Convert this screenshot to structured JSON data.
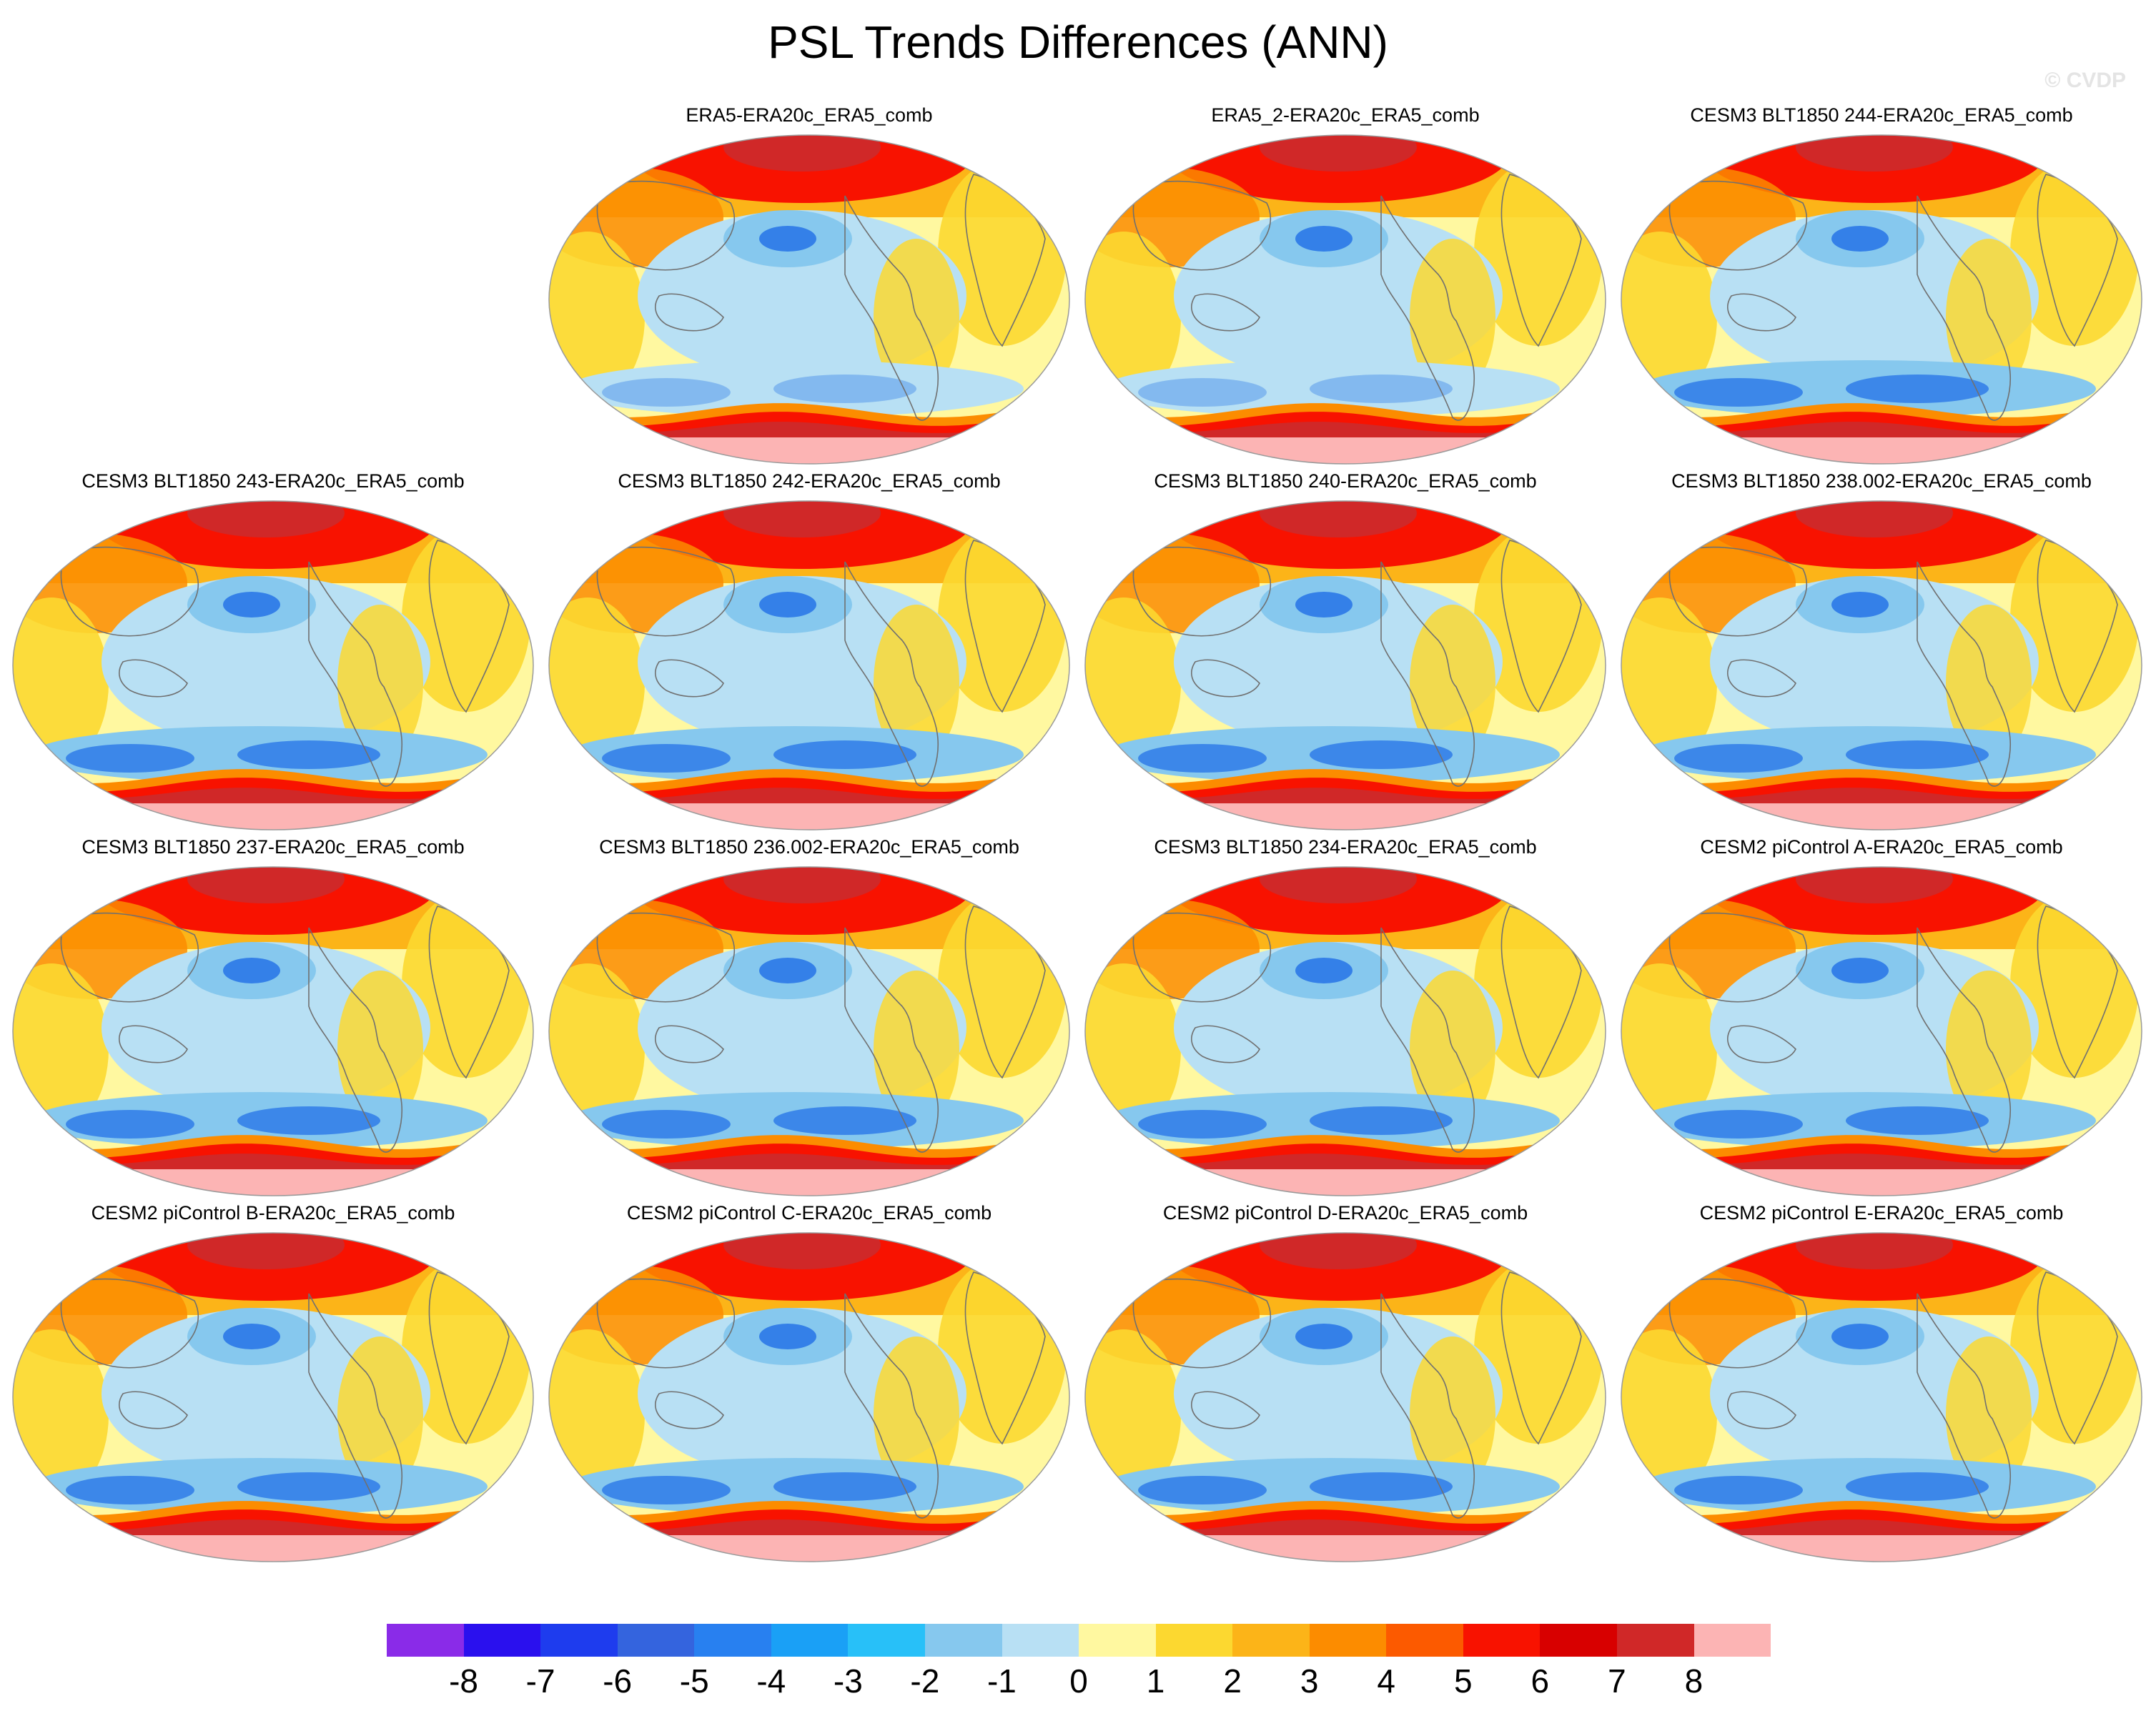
{
  "title": "PSL Trends Differences (ANN)",
  "watermark": "© CVDP",
  "panels": [
    {
      "label": "ERA5-ERA20c_ERA5_comb",
      "row": 0,
      "col": 1,
      "variant": "obs1"
    },
    {
      "label": "ERA5_2-ERA20c_ERA5_comb",
      "row": 0,
      "col": 2,
      "variant": "obs2"
    },
    {
      "label": "CESM3 BLT1850 244-ERA20c_ERA5_comb",
      "row": 0,
      "col": 3,
      "variant": "model"
    },
    {
      "label": "CESM3 BLT1850 243-ERA20c_ERA5_comb",
      "row": 1,
      "col": 0,
      "variant": "model"
    },
    {
      "label": "CESM3 BLT1850 242-ERA20c_ERA5_comb",
      "row": 1,
      "col": 1,
      "variant": "model"
    },
    {
      "label": "CESM3 BLT1850 240-ERA20c_ERA5_comb",
      "row": 1,
      "col": 2,
      "variant": "model"
    },
    {
      "label": "CESM3 BLT1850 238.002-ERA20c_ERA5_comb",
      "row": 1,
      "col": 3,
      "variant": "model"
    },
    {
      "label": "CESM3 BLT1850 237-ERA20c_ERA5_comb",
      "row": 2,
      "col": 0,
      "variant": "model"
    },
    {
      "label": "CESM3 BLT1850 236.002-ERA20c_ERA5_comb",
      "row": 2,
      "col": 1,
      "variant": "model"
    },
    {
      "label": "CESM3 BLT1850 234-ERA20c_ERA5_comb",
      "row": 2,
      "col": 2,
      "variant": "model"
    },
    {
      "label": "CESM2 piControl A-ERA20c_ERA5_comb",
      "row": 2,
      "col": 3,
      "variant": "model"
    },
    {
      "label": "CESM2 piControl B-ERA20c_ERA5_comb",
      "row": 3,
      "col": 0,
      "variant": "model"
    },
    {
      "label": "CESM2 piControl C-ERA20c_ERA5_comb",
      "row": 3,
      "col": 1,
      "variant": "model"
    },
    {
      "label": "CESM2 piControl D-ERA20c_ERA5_comb",
      "row": 3,
      "col": 2,
      "variant": "model"
    },
    {
      "label": "CESM2 piControl E-ERA20c_ERA5_comb",
      "row": 3,
      "col": 3,
      "variant": "model"
    }
  ],
  "colorbar": {
    "colors": [
      "#8a2be8",
      "#2a10ee",
      "#1e3cee",
      "#3464de",
      "#2880f0",
      "#1aa0f6",
      "#28c0f8",
      "#86c8ee",
      "#b8e0f4",
      "#fff8a0",
      "#fcd830",
      "#fcb418",
      "#fc8c00",
      "#fc5a00",
      "#f81200",
      "#d80000",
      "#d02828",
      "#fcb4b4"
    ],
    "labels": [
      "-8",
      "-7",
      "-6",
      "-5",
      "-4",
      "-3",
      "-2",
      "-1",
      "0",
      "1",
      "2",
      "3",
      "4",
      "5",
      "6",
      "7",
      "8"
    ]
  },
  "field_colors": {
    "ocean": "#fff8a0",
    "blue_light": "#b8e0f4",
    "blue_mid": "#86c8ee",
    "blue_deep": "#3480e8",
    "yellow": "#fcd830",
    "orange": "#fcb418",
    "orange_dark": "#fc8c00",
    "red": "#f81200",
    "red_dark": "#d02828",
    "pink": "#fcb4b4",
    "coast": "#707070"
  }
}
